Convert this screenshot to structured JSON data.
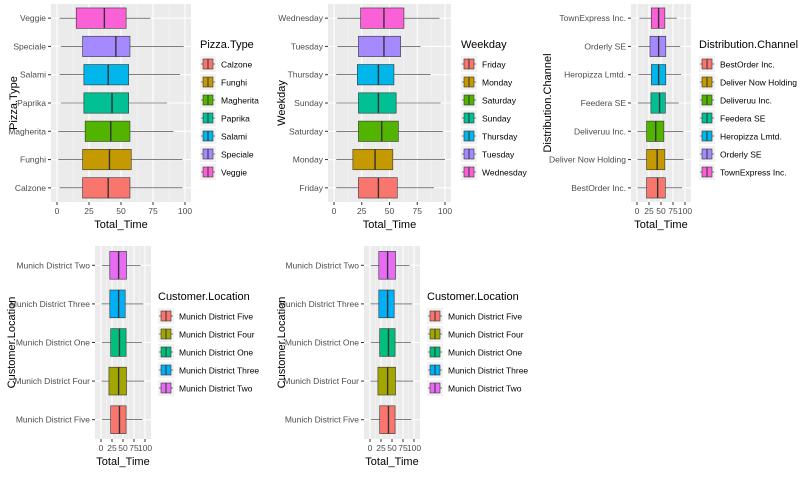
{
  "chart_data": [
    {
      "id": "pizza",
      "type": "boxplot",
      "horizontal": true,
      "xlabel": "Total_Time",
      "ylabel": "Pizza.Type",
      "xlim": [
        0,
        100
      ],
      "xticks": [
        0,
        25,
        50,
        75,
        100
      ],
      "tick_labels": [
        "0",
        "25",
        "50",
        "75",
        "100"
      ],
      "legend_title": "Pizza.Type",
      "grid": true,
      "legend_position": "right",
      "categories": [
        "Calzone",
        "Funghi",
        "Magherita",
        "Paprika",
        "Salami",
        "Speciale",
        "Veggie"
      ],
      "colors": [
        "#F8766D",
        "#C49A00",
        "#53B400",
        "#00C094",
        "#00B6EB",
        "#A58AFF",
        "#FB61D7"
      ],
      "boxes": [
        {
          "min": 2,
          "q1": 20,
          "median": 40,
          "q3": 57,
          "max": 98
        },
        {
          "min": 1,
          "q1": 20,
          "median": 41,
          "q3": 58,
          "max": 98
        },
        {
          "min": 1,
          "q1": 22,
          "median": 42,
          "q3": 57,
          "max": 91
        },
        {
          "min": 3,
          "q1": 21,
          "median": 43,
          "q3": 56,
          "max": 86
        },
        {
          "min": 2,
          "q1": 21,
          "median": 40,
          "q3": 56,
          "max": 96
        },
        {
          "min": 3,
          "q1": 20,
          "median": 46,
          "q3": 57,
          "max": 99
        },
        {
          "min": 2,
          "q1": 15,
          "median": 37,
          "q3": 54,
          "max": 73
        }
      ]
    },
    {
      "id": "weekday",
      "type": "boxplot",
      "horizontal": true,
      "xlabel": "Total_Time",
      "ylabel": "Weekday",
      "xlim": [
        0,
        100
      ],
      "xticks": [
        0,
        25,
        50,
        75,
        100
      ],
      "tick_labels": [
        "0",
        "25",
        "50",
        "75",
        "100"
      ],
      "legend_title": "Weekday",
      "grid": true,
      "legend_position": "right",
      "categories": [
        "Friday",
        "Monday",
        "Saturday",
        "Sunday",
        "Thursday",
        "Tuesday",
        "Wednesday"
      ],
      "colors": [
        "#F8766D",
        "#C49A00",
        "#53B400",
        "#00C094",
        "#00B6EB",
        "#A58AFF",
        "#FB61D7"
      ],
      "boxes": [
        {
          "min": 2,
          "q1": 22,
          "median": 40,
          "q3": 57,
          "max": 90
        },
        {
          "min": 2,
          "q1": 17,
          "median": 37,
          "q3": 53,
          "max": 100
        },
        {
          "min": 2,
          "q1": 22,
          "median": 43,
          "q3": 58,
          "max": 98
        },
        {
          "min": 2,
          "q1": 22,
          "median": 40,
          "q3": 56,
          "max": 96
        },
        {
          "min": 2,
          "q1": 21,
          "median": 40,
          "q3": 54,
          "max": 87
        },
        {
          "min": 3,
          "q1": 22,
          "median": 45,
          "q3": 60,
          "max": 78
        },
        {
          "min": 3,
          "q1": 24,
          "median": 45,
          "q3": 63,
          "max": 95
        }
      ]
    },
    {
      "id": "channel",
      "type": "boxplot",
      "horizontal": true,
      "xlabel": "Total_Time",
      "ylabel": "Distribution.Channel",
      "xlim": [
        0,
        100
      ],
      "xticks": [
        0,
        25,
        50,
        75,
        100
      ],
      "tick_labels": [
        "0",
        "25",
        "50",
        "75",
        "100"
      ],
      "legend_title": "Distribution.Channel",
      "grid": true,
      "legend_position": "right",
      "categories": [
        "BestOrder Inc.",
        "Deliver Now Holding",
        "Deliveruu Inc.",
        "Feedera SE",
        "Heropizza Lmtd.",
        "Orderly SE",
        "TownExpress Inc."
      ],
      "colors": [
        "#F8766D",
        "#C49A00",
        "#53B400",
        "#00C094",
        "#00B6EB",
        "#A58AFF",
        "#FB61D7"
      ],
      "boxes": [
        {
          "min": 1,
          "q1": 20,
          "median": 43,
          "q3": 59,
          "max": 94
        },
        {
          "min": 1,
          "q1": 20,
          "median": 42,
          "q3": 58,
          "max": 97
        },
        {
          "min": 1,
          "q1": 20,
          "median": 39,
          "q3": 56,
          "max": 96
        },
        {
          "min": 2,
          "q1": 29,
          "median": 47,
          "q3": 59,
          "max": 87
        },
        {
          "min": 3,
          "q1": 30,
          "median": 45,
          "q3": 60,
          "max": 92
        },
        {
          "min": 3,
          "q1": 27,
          "median": 45,
          "q3": 60,
          "max": 90
        },
        {
          "min": 5,
          "q1": 30,
          "median": 45,
          "q3": 58,
          "max": 83
        }
      ]
    },
    {
      "id": "location1",
      "type": "boxplot",
      "horizontal": true,
      "xlabel": "Total_Time",
      "ylabel": "Customer.Location",
      "xlim": [
        0,
        100
      ],
      "xticks": [
        0,
        25,
        50,
        75,
        100
      ],
      "tick_labels": [
        "0",
        "25",
        "50",
        "75",
        "100"
      ],
      "legend_title": "Customer.Location",
      "grid": true,
      "legend_position": "right",
      "categories": [
        "Munich District Five",
        "Munich District Four",
        "Munich District One",
        "Munich District Three",
        "Munich District Two"
      ],
      "colors": [
        "#F8766D",
        "#A3A500",
        "#00BF7D",
        "#00B0F6",
        "#E76BF3"
      ],
      "boxes": [
        {
          "min": 2,
          "q1": 22,
          "median": 42,
          "q3": 57,
          "max": 94
        },
        {
          "min": 1,
          "q1": 18,
          "median": 40,
          "q3": 58,
          "max": 98
        },
        {
          "min": 2,
          "q1": 22,
          "median": 42,
          "q3": 57,
          "max": 93
        },
        {
          "min": 1,
          "q1": 20,
          "median": 40,
          "q3": 55,
          "max": 96
        },
        {
          "min": 2,
          "q1": 20,
          "median": 40,
          "q3": 58,
          "max": 90
        }
      ]
    },
    {
      "id": "location2",
      "type": "boxplot",
      "horizontal": true,
      "xlabel": "Total_Time",
      "ylabel": "Customer.Location",
      "xlim": [
        0,
        100
      ],
      "xticks": [
        0,
        25,
        50,
        75,
        100
      ],
      "tick_labels": [
        "0",
        "25",
        "50",
        "75",
        "100"
      ],
      "legend_title": "Customer.Location",
      "grid": true,
      "legend_position": "right",
      "categories": [
        "Munich District Five",
        "Munich District Four",
        "Munich District One",
        "Munich District Three",
        "Munich District Two"
      ],
      "colors": [
        "#F8766D",
        "#A3A500",
        "#00BF7D",
        "#00B0F6",
        "#E76BF3"
      ],
      "boxes": [
        {
          "min": 2,
          "q1": 22,
          "median": 42,
          "q3": 57,
          "max": 94
        },
        {
          "min": 1,
          "q1": 18,
          "median": 40,
          "q3": 58,
          "max": 98
        },
        {
          "min": 2,
          "q1": 22,
          "median": 42,
          "q3": 57,
          "max": 93
        },
        {
          "min": 1,
          "q1": 20,
          "median": 40,
          "q3": 55,
          "max": 96
        },
        {
          "min": 2,
          "q1": 20,
          "median": 40,
          "q3": 58,
          "max": 90
        }
      ]
    }
  ]
}
